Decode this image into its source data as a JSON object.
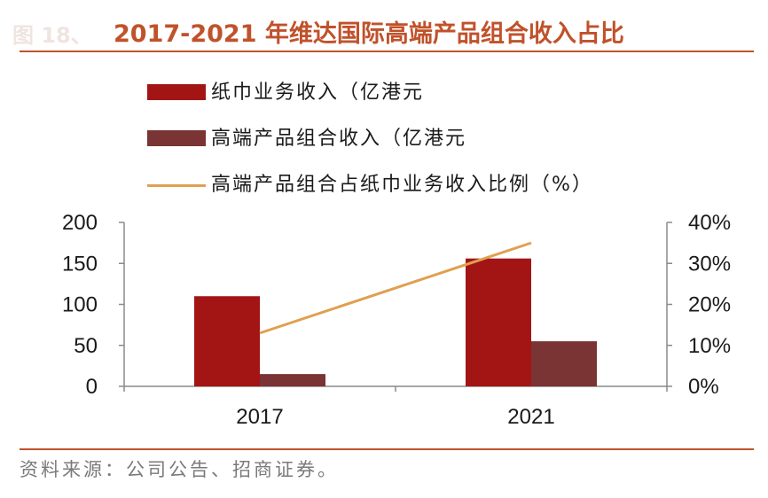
{
  "header": {
    "prefix": "图 18、",
    "title": "2017-2021 年维达国际高端产品组合收入占比"
  },
  "footer": {
    "source": "资料来源：公司公告、招商证券。"
  },
  "colors": {
    "accent": "#c0522b",
    "series_paper": "#a31515",
    "series_premium": "#7a3434",
    "series_ratio": "#e0a050"
  },
  "chart_data": {
    "type": "bar",
    "categories": [
      "2017",
      "2021"
    ],
    "series": [
      {
        "name": "纸巾业务收入（亿港元",
        "type": "bar",
        "axis": "left",
        "values": [
          110,
          156
        ]
      },
      {
        "name": "高端产品组合收入（亿港元",
        "type": "bar",
        "axis": "left",
        "values": [
          15,
          55
        ]
      },
      {
        "name": "高端产品组合占纸巾业务收入比例（%）",
        "type": "line",
        "axis": "right",
        "values": [
          13,
          35
        ]
      }
    ],
    "ylim": [
      0,
      200
    ],
    "yticks": [
      "0",
      "50",
      "100",
      "150",
      "200"
    ],
    "y2lim": [
      0,
      40
    ],
    "y2ticks": [
      "0%",
      "10%",
      "20%",
      "30%",
      "40%"
    ],
    "legend_position": "top",
    "grid": false
  }
}
